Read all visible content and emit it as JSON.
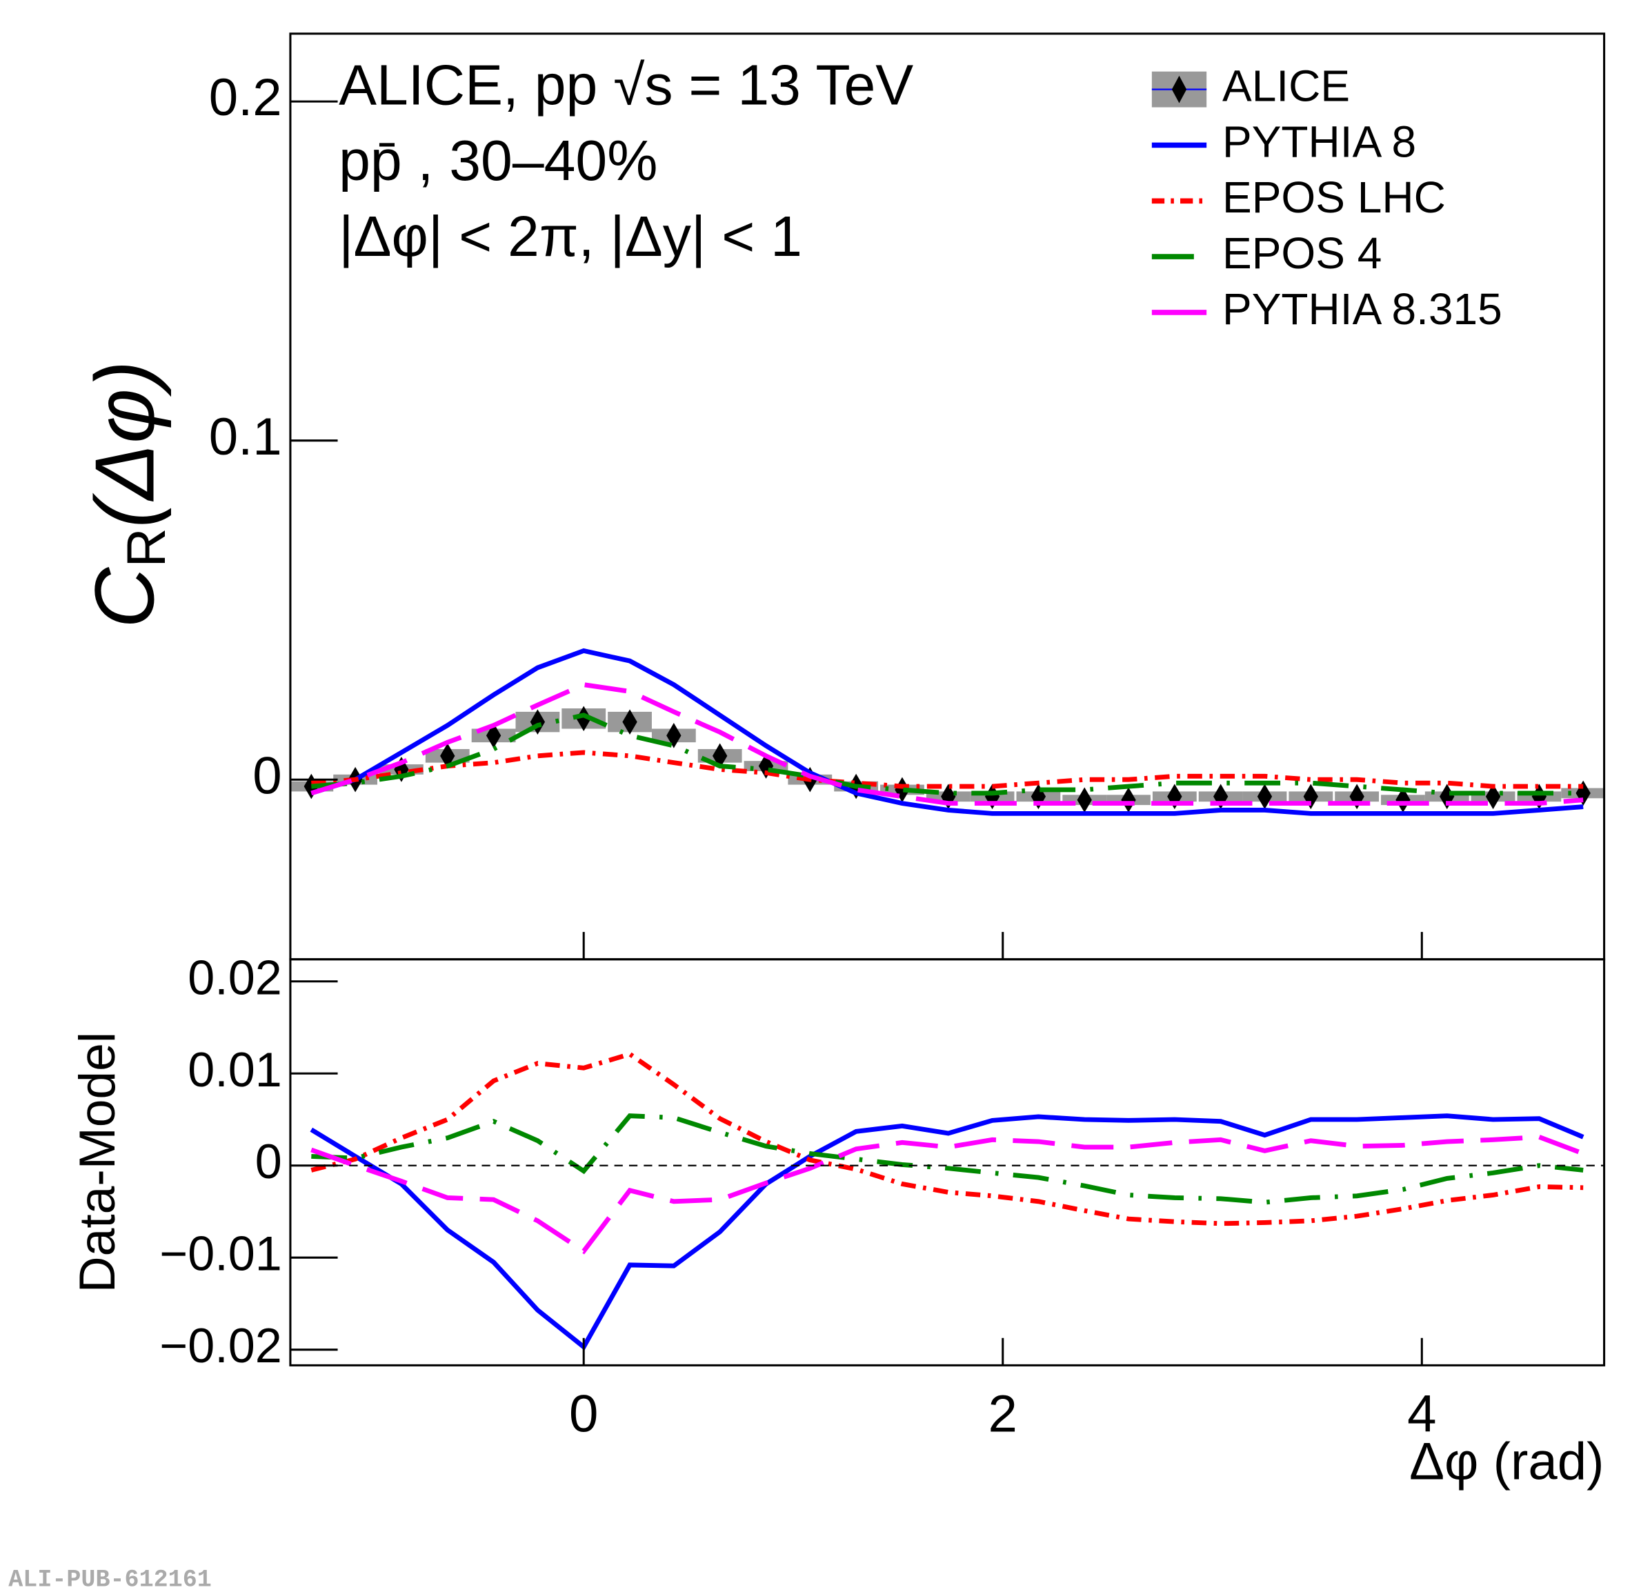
{
  "chart_data": [
    {
      "type": "line",
      "annotations": [
        "ALICE, pp √s = 13 TeV",
        "pp̄ , 30–40%",
        "|Δφ| < 2π, |Δy| < 1"
      ],
      "ylabel": {
        "symbol": "C",
        "subscript": "R",
        "argument": "(Δφ)"
      },
      "xlim": [
        -1.4,
        4.87
      ],
      "ylim": [
        -0.053,
        0.22
      ],
      "yticks": [
        0,
        0.1,
        0.2
      ],
      "legend": "upper right",
      "x": [
        -1.3,
        -1.09,
        -0.87,
        -0.65,
        -0.43,
        -0.22,
        0,
        0.22,
        0.43,
        0.65,
        0.87,
        1.08,
        1.3,
        1.52,
        1.74,
        1.95,
        2.17,
        2.39,
        2.6,
        2.82,
        3.04,
        3.25,
        3.47,
        3.69,
        3.91,
        4.12,
        4.34,
        4.56,
        4.77
      ],
      "series": [
        {
          "name": "ALICE",
          "color": "#000000",
          "marker": "diamond",
          "syst_color": "#999999",
          "values": [
            -0.002,
            0,
            0.003,
            0.007,
            0.013,
            0.017,
            0.018,
            0.017,
            0.013,
            0.007,
            0.004,
            0,
            -0.002,
            -0.003,
            -0.005,
            -0.005,
            -0.005,
            -0.006,
            -0.006,
            -0.005,
            -0.005,
            -0.005,
            -0.005,
            -0.005,
            -0.006,
            -0.005,
            -0.005,
            -0.005,
            -0.004
          ],
          "syst": [
            0.0015,
            0.0015,
            0.0015,
            0.002,
            0.002,
            0.003,
            0.003,
            0.003,
            0.002,
            0.002,
            0.0015,
            0.0015,
            0.0015,
            0.0015,
            0.0015,
            0.0015,
            0.0015,
            0.0015,
            0.0015,
            0.0015,
            0.0015,
            0.0015,
            0.0015,
            0.0015,
            0.0015,
            0.0015,
            0.0015,
            0.0015,
            0.0015
          ]
        },
        {
          "name": "PYTHIA 8",
          "color": "#0000ff",
          "dash": "solid",
          "values": [
            -0.004,
            0.0,
            0.008,
            0.016,
            0.025,
            0.033,
            0.038,
            0.035,
            0.028,
            0.019,
            0.01,
            0.002,
            -0.004,
            -0.007,
            -0.009,
            -0.01,
            -0.01,
            -0.01,
            -0.01,
            -0.01,
            -0.009,
            -0.009,
            -0.01,
            -0.01,
            -0.01,
            -0.01,
            -0.01,
            -0.009,
            -0.008
          ]
        },
        {
          "name": "EPOS LHC",
          "color": "#ff0000",
          "dash": "dashdot",
          "values": [
            -0.001,
            0.0,
            0.002,
            0.004,
            0.005,
            0.007,
            0.008,
            0.007,
            0.005,
            0.003,
            0.002,
            0.0,
            -0.001,
            -0.002,
            -0.002,
            -0.002,
            -0.001,
            0,
            0.0,
            0.001,
            0.001,
            0.001,
            0.0,
            0.0,
            -0.001,
            -0.001,
            -0.002,
            -0.002,
            -0.002
          ]
        },
        {
          "name": "EPOS 4",
          "color": "#008800",
          "dash": "longdashdot",
          "values": [
            -0.002,
            -0.001,
            0.001,
            0.004,
            0.009,
            0.016,
            0.019,
            0.013,
            0.01,
            0.004,
            0.003,
            0.001,
            -0.002,
            -0.003,
            -0.004,
            -0.004,
            -0.003,
            -0.003,
            -0.002,
            -0.001,
            -0.001,
            -0.001,
            -0.001,
            -0.002,
            -0.003,
            -0.004,
            -0.004,
            -0.004,
            -0.004
          ]
        },
        {
          "name": "PYTHIA 8.315",
          "color": "#ff00ff",
          "dash": "longdash",
          "values": [
            -0.004,
            0.0,
            0.005,
            0.011,
            0.016,
            0.022,
            0.028,
            0.026,
            0.02,
            0.014,
            0.007,
            0.001,
            -0.003,
            -0.005,
            -0.007,
            -0.007,
            -0.007,
            -0.007,
            -0.007,
            -0.007,
            -0.007,
            -0.007,
            -0.007,
            -0.007,
            -0.007,
            -0.007,
            -0.007,
            -0.007,
            -0.006
          ]
        }
      ]
    },
    {
      "type": "line",
      "ylabel": "Data-Model",
      "xlabel": "Δφ (rad)",
      "xlim": [
        -1.4,
        4.87
      ],
      "ylim": [
        -0.0217,
        0.0224
      ],
      "xticks": [
        0,
        2,
        4
      ],
      "yticks": [
        {
          "value": -0.02,
          "label": "−0.02"
        },
        {
          "value": -0.01,
          "label": "−0.01"
        },
        0,
        0.01,
        0.02
      ],
      "zero_line": true,
      "x": [
        -1.3,
        -1.09,
        -0.87,
        -0.65,
        -0.43,
        -0.22,
        0,
        0.22,
        0.43,
        0.65,
        0.87,
        1.08,
        1.3,
        1.52,
        1.74,
        1.95,
        2.17,
        2.39,
        2.6,
        2.82,
        3.04,
        3.25,
        3.47,
        3.69,
        3.91,
        4.12,
        4.34,
        4.56,
        4.77
      ],
      "series": [
        {
          "color": "#0000ff",
          "dash": "solid",
          "values": [
            0.0039,
            0.001,
            -0.002,
            -0.007,
            -0.0105,
            -0.0157,
            -0.0197,
            -0.0108,
            -0.0109,
            -0.0072,
            -0.002,
            0.001,
            0.0037,
            0.0043,
            0.0035,
            0.0049,
            0.0053,
            0.005,
            0.0049,
            0.005,
            0.0048,
            0.0033,
            0.005,
            0.005,
            0.0052,
            0.0054,
            0.005,
            0.0051,
            0.0031
          ]
        },
        {
          "color": "#ff0000",
          "dash": "dashdot",
          "values": [
            -0.0005,
            0.0007,
            0.003,
            0.005,
            0.0092,
            0.0111,
            0.0106,
            0.0121,
            0.0088,
            0.0051,
            0.0026,
            0.0006,
            -0.0004,
            -0.002,
            -0.0029,
            -0.0033,
            -0.0039,
            -0.0049,
            -0.0058,
            -0.0061,
            -0.0063,
            -0.0062,
            -0.006,
            -0.0055,
            -0.0047,
            -0.0038,
            -0.0032,
            -0.0023,
            -0.0024
          ]
        },
        {
          "color": "#008800",
          "dash": "longdashdot",
          "values": [
            0.001,
            0.0008,
            0.002,
            0.003,
            0.0048,
            0.0027,
            -0.0006,
            0.0054,
            0.0052,
            0.0036,
            0.0021,
            0.0013,
            0.0007,
            0.0001,
            -0.0003,
            -0.0008,
            -0.0013,
            -0.0022,
            -0.0032,
            -0.0035,
            -0.0036,
            -0.004,
            -0.0035,
            -0.0033,
            -0.0026,
            -0.0014,
            -0.0008,
            0.0,
            -0.0005
          ]
        },
        {
          "color": "#ff00ff",
          "dash": "longdash",
          "values": [
            0.0017,
            0.0,
            -0.0017,
            -0.0035,
            -0.0037,
            -0.006,
            -0.0093,
            -0.0027,
            -0.0039,
            -0.0037,
            -0.0019,
            -0.0003,
            0.0018,
            0.0025,
            0.002,
            0.0028,
            0.0026,
            0.002,
            0.002,
            0.0025,
            0.0028,
            0.0016,
            0.0027,
            0.0021,
            0.0022,
            0.0026,
            0.0028,
            0.0031,
            0.0013
          ]
        }
      ]
    }
  ],
  "footer": "ALI-PUB-612161"
}
